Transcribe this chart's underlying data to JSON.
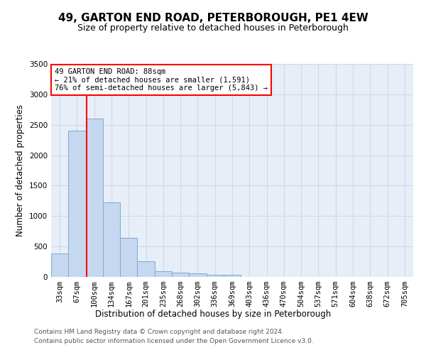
{
  "title_line1": "49, GARTON END ROAD, PETERBOROUGH, PE1 4EW",
  "title_line2": "Size of property relative to detached houses in Peterborough",
  "xlabel": "Distribution of detached houses by size in Peterborough",
  "ylabel": "Number of detached properties",
  "footer_line1": "Contains HM Land Registry data © Crown copyright and database right 2024.",
  "footer_line2": "Contains public sector information licensed under the Open Government Licence v3.0.",
  "categories": [
    "33sqm",
    "67sqm",
    "100sqm",
    "134sqm",
    "167sqm",
    "201sqm",
    "235sqm",
    "268sqm",
    "302sqm",
    "336sqm",
    "369sqm",
    "403sqm",
    "436sqm",
    "470sqm",
    "504sqm",
    "537sqm",
    "571sqm",
    "604sqm",
    "638sqm",
    "672sqm",
    "705sqm"
  ],
  "bar_values": [
    390,
    2400,
    2600,
    1230,
    640,
    260,
    95,
    65,
    60,
    40,
    30,
    0,
    0,
    0,
    0,
    0,
    0,
    0,
    0,
    0,
    0
  ],
  "bar_color": "#c5d8f0",
  "bar_edge_color": "#7aaad4",
  "annotation_text": "49 GARTON END ROAD: 88sqm\n← 21% of detached houses are smaller (1,591)\n76% of semi-detached houses are larger (5,843) →",
  "annotation_box_color": "white",
  "annotation_box_edge_color": "red",
  "vline_color": "red",
  "vline_x": 1.55,
  "ylim": [
    0,
    3500
  ],
  "yticks": [
    0,
    500,
    1000,
    1500,
    2000,
    2500,
    3000,
    3500
  ],
  "grid_color": "#d0d8e8",
  "background_color": "#e8eef8",
  "title1_fontsize": 11,
  "title2_fontsize": 9,
  "axis_label_fontsize": 8.5,
  "tick_fontsize": 7.5,
  "footer_fontsize": 6.5
}
